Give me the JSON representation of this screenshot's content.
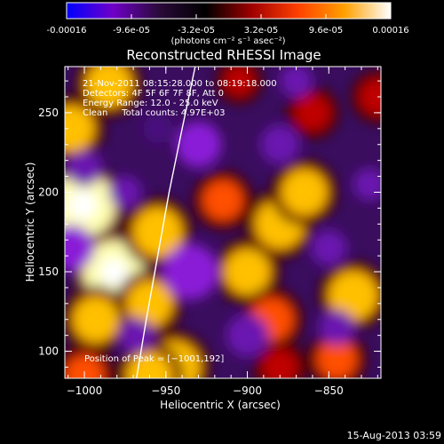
{
  "colorbar": {
    "tick_labels": [
      "-0.00016",
      "-9.6e-05",
      "-3.2e-05",
      "3.2e-05",
      "9.6e-05",
      "0.00016"
    ],
    "tick_values": [
      -0.00016,
      -9.6e-05,
      -3.2e-05,
      3.2e-05,
      9.6e-05,
      0.00016
    ],
    "range": [
      -0.00016,
      0.00016
    ],
    "units": "(photons cm⁻² s⁻¹ asec⁻²)",
    "colormap": [
      "#0000ff",
      "#6f00c8",
      "#2a0a3a",
      "#000000",
      "#a00000",
      "#ff4000",
      "#ffa000",
      "#ffffff"
    ]
  },
  "chart_data": {
    "type": "heatmap",
    "title": "Reconstructed RHESSI Image",
    "xlabel": "Heliocentric X (arcsec)",
    "ylabel": "Heliocentric Y (arcsec)",
    "xlim": [
      -1012,
      -818
    ],
    "ylim": [
      83,
      279
    ],
    "x_ticks": [
      -1000,
      -950,
      -900,
      -850
    ],
    "y_ticks": [
      100,
      150,
      200,
      250
    ],
    "x_tick_labels": [
      "−1000",
      "−950",
      "−900",
      "−850"
    ],
    "y_tick_labels": [
      "100",
      "150",
      "200",
      "250"
    ],
    "annotations": [
      "21-Nov-2011 08:15:28.000 to 08:19:18.000",
      "Detectors: 4F 5F 6F 7F 8F, Att 0",
      "Energy Range: 12.0 - 25.0 keV",
      "Clean     Total counts: 4.97E+03"
    ],
    "peak_label": "Position of Peak = [−1001,192]",
    "peak_position": [
      -1001,
      192
    ],
    "limb_curve": [
      [
        -968,
        83
      ],
      [
        -962,
        120
      ],
      [
        -955,
        160
      ],
      [
        -948,
        200
      ],
      [
        -940,
        240
      ],
      [
        -932,
        279
      ]
    ],
    "blobs": [
      {
        "x": -1001,
        "y": 192,
        "v": 1.0
      },
      {
        "x": -982,
        "y": 150,
        "v": 0.95
      },
      {
        "x": -985,
        "y": 268,
        "v": 0.7
      },
      {
        "x": -1008,
        "y": 240,
        "v": 0.7
      },
      {
        "x": -993,
        "y": 120,
        "v": 0.7
      },
      {
        "x": -955,
        "y": 175,
        "v": 0.75
      },
      {
        "x": -960,
        "y": 130,
        "v": 0.7
      },
      {
        "x": -945,
        "y": 90,
        "v": 0.8
      },
      {
        "x": -960,
        "y": 85,
        "v": 0.7
      },
      {
        "x": -900,
        "y": 150,
        "v": 0.7
      },
      {
        "x": -885,
        "y": 120,
        "v": 0.65
      },
      {
        "x": -880,
        "y": 180,
        "v": 0.75
      },
      {
        "x": -865,
        "y": 200,
        "v": 0.7
      },
      {
        "x": -915,
        "y": 195,
        "v": 0.6
      },
      {
        "x": -835,
        "y": 135,
        "v": 0.75
      },
      {
        "x": -845,
        "y": 95,
        "v": 0.6
      },
      {
        "x": -880,
        "y": 90,
        "v": 0.5
      },
      {
        "x": -905,
        "y": 270,
        "v": 0.4
      },
      {
        "x": -860,
        "y": 250,
        "v": 0.5
      },
      {
        "x": -820,
        "y": 260,
        "v": 0.5
      },
      {
        "x": -1000,
        "y": 85,
        "v": 0.6
      },
      {
        "x": -935,
        "y": 150,
        "v": -0.85
      },
      {
        "x": -930,
        "y": 230,
        "v": -0.7
      },
      {
        "x": -880,
        "y": 230,
        "v": -0.6
      },
      {
        "x": -1008,
        "y": 165,
        "v": -0.7
      },
      {
        "x": -1000,
        "y": 215,
        "v": -0.55
      },
      {
        "x": -968,
        "y": 110,
        "v": -0.55
      },
      {
        "x": -900,
        "y": 110,
        "v": -0.65
      },
      {
        "x": -850,
        "y": 165,
        "v": -0.55
      },
      {
        "x": -825,
        "y": 205,
        "v": -0.5
      },
      {
        "x": -870,
        "y": 270,
        "v": -0.5
      },
      {
        "x": -955,
        "y": 240,
        "v": -0.45
      },
      {
        "x": -845,
        "y": 115,
        "v": -0.55
      },
      {
        "x": -975,
        "y": 200,
        "v": -0.5
      }
    ]
  },
  "footer": {
    "timestamp": "15-Aug-2013 03:59"
  }
}
